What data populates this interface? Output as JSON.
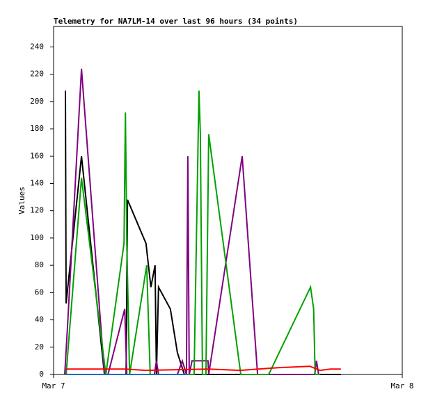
{
  "chart_data": {
    "type": "line",
    "title": "Telemetry for NA7LM-14 over last 96 hours (34 points)",
    "y_label": "Values",
    "xlim": [
      0,
      1
    ],
    "xticks": [
      {
        "value": 0,
        "label": "Mar 7"
      },
      {
        "value": 1,
        "label": "Mar 8"
      }
    ],
    "ylim": [
      0,
      255
    ],
    "yticks": [
      0,
      20,
      40,
      60,
      80,
      100,
      120,
      140,
      160,
      180,
      200,
      220,
      240
    ],
    "series": [
      {
        "color": "#000000",
        "x": [
          0.034,
          0.036,
          0.08,
          0.146,
          0.208,
          0.212,
          0.265,
          0.279,
          0.291,
          0.295,
          0.301,
          0.335,
          0.355,
          0.375,
          0.824
        ],
        "values": [
          208,
          52,
          160,
          0,
          0,
          128,
          96,
          64,
          80,
          0,
          64,
          48,
          16,
          0,
          0
        ]
      },
      {
        "color": "#800080",
        "x": [
          0.032,
          0.04,
          0.08,
          0.146,
          0.156,
          0.204,
          0.21,
          0.289,
          0.295,
          0.301,
          0.355,
          0.369,
          0.381,
          0.385,
          0.389,
          0.397,
          0.443,
          0.445,
          0.541,
          0.585,
          0.749,
          0.754,
          0.76
        ],
        "values": [
          0,
          35,
          224,
          0,
          0,
          48,
          0,
          0,
          10,
          0,
          0,
          10,
          0,
          160,
          0,
          10,
          10,
          0,
          160,
          0,
          0,
          10,
          0
        ]
      },
      {
        "color": "#00a000",
        "x": [
          0.036,
          0.08,
          0.15,
          0.202,
          0.206,
          0.21,
          0.218,
          0.267,
          0.277,
          0.403,
          0.417,
          0.421,
          0.427,
          0.437,
          0.445,
          0.537,
          0.617,
          0.737,
          0.746,
          0.75,
          0.764
        ],
        "values": [
          0,
          144,
          0,
          96,
          192,
          96,
          0,
          80,
          0,
          0,
          208,
          176,
          0,
          0,
          176,
          0,
          0,
          64,
          48,
          0,
          0
        ]
      },
      {
        "color": "#ff0000",
        "x": [
          0.036,
          0.146,
          0.206,
          0.265,
          0.445,
          0.535,
          0.645,
          0.735,
          0.754,
          0.764,
          0.794,
          0.824
        ],
        "values": [
          4,
          4,
          4,
          3,
          4,
          3,
          5,
          6,
          4,
          3,
          4,
          4
        ]
      },
      {
        "color": "#0070c0",
        "x": [
          0.036,
          0.385
        ],
        "values": [
          0,
          0
        ]
      }
    ]
  }
}
